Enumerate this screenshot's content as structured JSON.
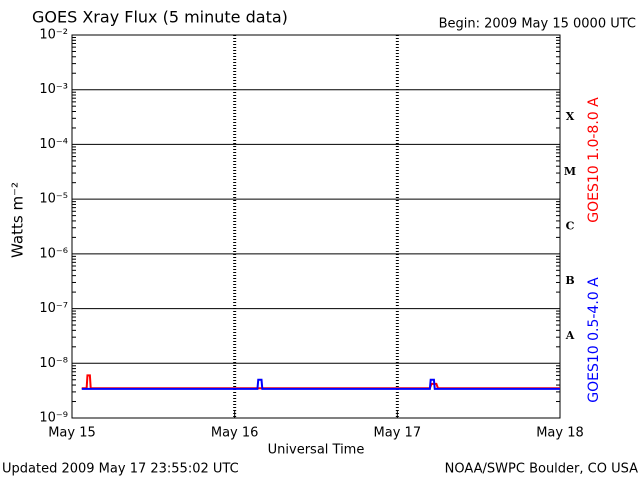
{
  "chart_data": {
    "type": "line",
    "title": "GOES Xray Flux (5 minute data)",
    "subtitle": "Begin:  2009 May 15 0000 UTC",
    "x_label": "Universal Time",
    "y_label": "Watts m⁻²",
    "footer_left": "Updated 2009 May 17 23:55:02 UTC",
    "footer_right": "NOAA/SWPC Boulder, CO USA",
    "log_y": true,
    "grid": true,
    "xlim": [
      0,
      3
    ],
    "xticks": [
      {
        "value": 0,
        "label": "May 15"
      },
      {
        "value": 1,
        "label": "May 16"
      },
      {
        "value": 2,
        "label": "May 17"
      },
      {
        "value": 3,
        "label": "May 18"
      }
    ],
    "ylim": [
      1e-09,
      0.01
    ],
    "yticks": [
      {
        "value": 1e-09,
        "label": "10⁻⁹"
      },
      {
        "value": 1e-08,
        "label": "10⁻⁸"
      },
      {
        "value": 1e-07,
        "label": "10⁻⁷"
      },
      {
        "value": 1e-06,
        "label": "10⁻⁶"
      },
      {
        "value": 1e-05,
        "label": "10⁻⁵"
      },
      {
        "value": 0.0001,
        "label": "10⁻⁴"
      },
      {
        "value": 0.001,
        "label": "10⁻³"
      },
      {
        "value": 0.01,
        "label": "10⁻²"
      }
    ],
    "flare_classes": [
      "X",
      "M",
      "C",
      "B",
      "A"
    ],
    "series": [
      {
        "name": "GOES10 1.0-8.0 A",
        "color": "#ff0000",
        "x": [
          0.06,
          0.09,
          0.095,
          0.11,
          0.115,
          2.2,
          2.21,
          2.24,
          2.25,
          3.0
        ],
        "values": [
          3.5e-09,
          3.5e-09,
          6e-09,
          6e-09,
          3.5e-09,
          3.5e-09,
          4.2e-09,
          4.2e-09,
          3.5e-09,
          3.5e-09
        ]
      },
      {
        "name": "GOES10 0.5-4.0 A",
        "color": "#0000ff",
        "x": [
          0.06,
          1.14,
          1.145,
          1.165,
          1.17,
          2.2,
          2.205,
          2.225,
          2.23,
          3.0
        ],
        "values": [
          3.4e-09,
          3.4e-09,
          5e-09,
          5e-09,
          3.4e-09,
          3.4e-09,
          5e-09,
          5e-09,
          3.4e-09,
          3.4e-09
        ]
      }
    ]
  }
}
